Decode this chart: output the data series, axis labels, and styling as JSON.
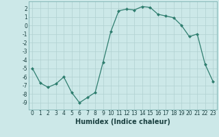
{
  "title": "",
  "xlabel": "Humidex (Indice chaleur)",
  "ylabel": "",
  "x_values": [
    0,
    1,
    2,
    3,
    4,
    5,
    6,
    7,
    8,
    9,
    10,
    11,
    12,
    13,
    14,
    15,
    16,
    17,
    18,
    19,
    20,
    21,
    22,
    23
  ],
  "y_values": [
    -5.0,
    -6.7,
    -7.2,
    -6.8,
    -6.0,
    -7.8,
    -9.0,
    -8.4,
    -7.8,
    -4.3,
    -0.7,
    1.7,
    1.9,
    1.8,
    2.2,
    2.1,
    1.3,
    1.1,
    0.9,
    0.0,
    -1.3,
    -1.0,
    -4.5,
    -6.5
  ],
  "line_color": "#2e7d6e",
  "marker": "D",
  "marker_size": 2,
  "background_color": "#cce8e8",
  "grid_color": "#b0d0d0",
  "ylim": [
    -9.8,
    2.8
  ],
  "xlim": [
    -0.5,
    23.5
  ],
  "yticks": [
    2,
    1,
    0,
    -1,
    -2,
    -3,
    -4,
    -5,
    -6,
    -7,
    -8,
    -9
  ],
  "xticks": [
    0,
    1,
    2,
    3,
    4,
    5,
    6,
    7,
    8,
    9,
    10,
    11,
    12,
    13,
    14,
    15,
    16,
    17,
    18,
    19,
    20,
    21,
    22,
    23
  ],
  "tick_fontsize": 5.5,
  "xlabel_fontsize": 7,
  "grid_linewidth": 0.5,
  "line_width": 0.9
}
